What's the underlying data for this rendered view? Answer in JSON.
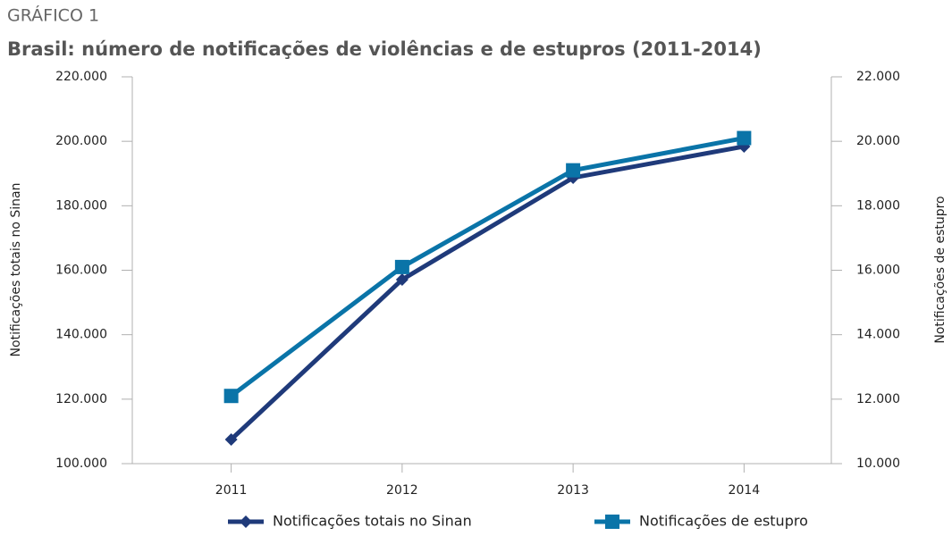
{
  "label": "GRÁFICO 1",
  "chart_data": {
    "type": "line",
    "title": "Brasil: número de notificações de violências e de estupros (2011-2014)",
    "y_label": "Notificações totais no Sinan",
    "y2_label": "Notificações de estupro",
    "categories": [
      "2011",
      "2012",
      "2013",
      "2014"
    ],
    "series": [
      {
        "name": "Notificações totais no Sinan",
        "color": "#1f3a7a",
        "marker": "diamond",
        "values": [
          107500,
          157100,
          188700,
          198400
        ]
      },
      {
        "name": "Notificações de estupro",
        "color": "#0a74a8",
        "marker": "square",
        "axis": "y2",
        "values": [
          12100,
          16100,
          19100,
          20100
        ]
      }
    ],
    "ylim": [
      100000,
      220000
    ],
    "yticks": [
      {
        "value": 100000,
        "label": "100.000"
      },
      {
        "value": 120000,
        "label": "120.000"
      },
      {
        "value": 140000,
        "label": "140.000"
      },
      {
        "value": 160000,
        "label": "160.000"
      },
      {
        "value": 180000,
        "label": "180.000"
      },
      {
        "value": 200000,
        "label": "200.000"
      },
      {
        "value": 220000,
        "label": "220.000"
      }
    ],
    "y2lim": [
      10000,
      22000
    ],
    "y2ticks": [
      {
        "value": 10000,
        "label": "10.000"
      },
      {
        "value": 12000,
        "label": "12.000"
      },
      {
        "value": 14000,
        "label": "14.000"
      },
      {
        "value": 16000,
        "label": "16.000"
      },
      {
        "value": 18000,
        "label": "18.000"
      },
      {
        "value": 20000,
        "label": "20.000"
      },
      {
        "value": 22000,
        "label": "22.000"
      }
    ],
    "grid": false,
    "legend": "bottom"
  }
}
